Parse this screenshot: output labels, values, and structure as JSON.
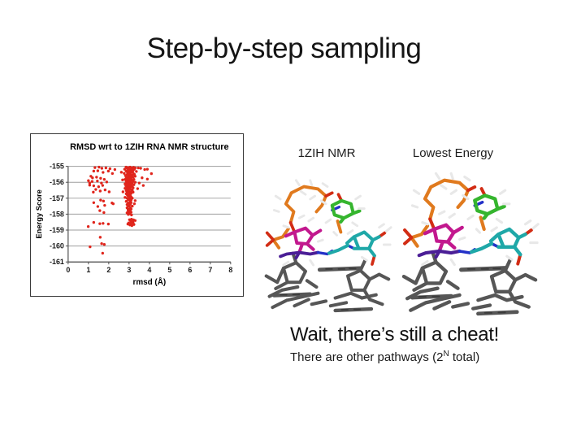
{
  "slide": {
    "title": "Step-by-step sampling",
    "caption_heading": "Wait, there’s still a cheat!",
    "caption_sub_prefix": "There are other pathways (2",
    "caption_sub_sup": "N",
    "caption_sub_suffix": " total)"
  },
  "figures": {
    "left_label": "1ZIH NMR",
    "right_label": "Lowest Energy"
  },
  "colors": {
    "marker_red": "#e0251c",
    "gridline": "#9e9e9e",
    "axis": "#4d4d4d",
    "text": "#1a1a1a"
  },
  "chart_data": {
    "type": "scatter",
    "title": "RMSD wrt to 1ZIH RNA NMR structure",
    "xlabel": "rmsd (Å)",
    "ylabel": "Energy Score",
    "xlim": [
      0,
      8
    ],
    "ylim": [
      -161,
      -155
    ],
    "xticks": [
      0,
      1,
      2,
      3,
      4,
      5,
      6,
      7,
      8
    ],
    "yticks": [
      -155,
      -156,
      -157,
      -158,
      -159,
      -160,
      -161
    ],
    "grid": true,
    "legend": "none",
    "marker_color": "#e0251c",
    "points": [
      [
        2.85,
        -155.05
      ],
      [
        2.95,
        -155.08
      ],
      [
        3.05,
        -155.05
      ],
      [
        3.12,
        -155.1
      ],
      [
        3.22,
        -155.06
      ],
      [
        2.9,
        -155.12
      ],
      [
        3.0,
        -155.15
      ],
      [
        3.16,
        -155.12
      ],
      [
        3.3,
        -155.1
      ],
      [
        3.45,
        -155.1
      ],
      [
        2.78,
        -155.18
      ],
      [
        3.05,
        -155.2
      ],
      [
        3.1,
        -155.22
      ],
      [
        3.26,
        -155.18
      ],
      [
        3.57,
        -155.12
      ],
      [
        2.95,
        -155.25
      ],
      [
        3.02,
        -155.28
      ],
      [
        3.2,
        -155.25
      ],
      [
        3.77,
        -155.2
      ],
      [
        3.9,
        -155.18
      ],
      [
        2.62,
        -155.37
      ],
      [
        2.86,
        -155.3
      ],
      [
        3.06,
        -155.32
      ],
      [
        3.16,
        -155.3
      ],
      [
        3.36,
        -155.32
      ],
      [
        2.92,
        -155.38
      ],
      [
        3.0,
        -155.4
      ],
      [
        3.1,
        -155.36
      ],
      [
        4.1,
        -155.46
      ],
      [
        2.76,
        -155.44
      ],
      [
        2.96,
        -155.45
      ],
      [
        3.2,
        -155.42
      ],
      [
        3.06,
        -155.48
      ],
      [
        2.9,
        -155.52
      ],
      [
        3.0,
        -155.5
      ],
      [
        3.12,
        -155.55
      ],
      [
        3.26,
        -155.5
      ],
      [
        2.82,
        -155.58
      ],
      [
        2.96,
        -155.6
      ],
      [
        3.16,
        -155.58
      ],
      [
        3.64,
        -155.72
      ],
      [
        3.0,
        -155.62
      ],
      [
        3.06,
        -155.65
      ],
      [
        3.3,
        -155.62
      ],
      [
        2.86,
        -155.7
      ],
      [
        2.96,
        -155.72
      ],
      [
        3.1,
        -155.7
      ],
      [
        3.2,
        -155.68
      ],
      [
        3.9,
        -155.8
      ],
      [
        2.9,
        -155.76
      ],
      [
        3.0,
        -155.78
      ],
      [
        3.05,
        -155.75
      ],
      [
        2.8,
        -155.82
      ],
      [
        3.1,
        -155.8
      ],
      [
        3.24,
        -155.82
      ],
      [
        2.68,
        -155.85
      ],
      [
        2.9,
        -155.88
      ],
      [
        3.0,
        -155.9
      ],
      [
        3.16,
        -155.88
      ],
      [
        3.06,
        -155.92
      ],
      [
        2.86,
        -155.95
      ],
      [
        2.96,
        -155.98
      ],
      [
        3.2,
        -155.95
      ],
      [
        2.9,
        -156.02
      ],
      [
        3.04,
        -156.0
      ],
      [
        3.12,
        -156.05
      ],
      [
        3.3,
        -156.0
      ],
      [
        3.5,
        -156.05
      ],
      [
        2.8,
        -156.1
      ],
      [
        2.94,
        -156.08
      ],
      [
        3.0,
        -156.12
      ],
      [
        3.16,
        -156.1
      ],
      [
        2.9,
        -156.15
      ],
      [
        3.06,
        -156.18
      ],
      [
        3.24,
        -156.15
      ],
      [
        3.7,
        -156.2
      ],
      [
        2.84,
        -156.22
      ],
      [
        3.0,
        -156.2
      ],
      [
        3.1,
        -156.25
      ],
      [
        2.9,
        -156.3
      ],
      [
        2.96,
        -156.32
      ],
      [
        3.16,
        -156.28
      ],
      [
        3.04,
        -156.35
      ],
      [
        2.8,
        -156.38
      ],
      [
        3.0,
        -156.4
      ],
      [
        3.2,
        -156.35
      ],
      [
        3.42,
        -156.4
      ],
      [
        2.9,
        -156.45
      ],
      [
        3.06,
        -156.42
      ],
      [
        3.12,
        -156.48
      ],
      [
        2.86,
        -156.52
      ],
      [
        2.96,
        -156.55
      ],
      [
        3.16,
        -156.5
      ],
      [
        3.0,
        -156.58
      ],
      [
        3.1,
        -156.6
      ],
      [
        2.7,
        -156.6
      ],
      [
        2.9,
        -156.65
      ],
      [
        3.04,
        -156.68
      ],
      [
        3.2,
        -156.62
      ],
      [
        2.86,
        -156.72
      ],
      [
        3.0,
        -156.75
      ],
      [
        3.1,
        -156.7
      ],
      [
        2.92,
        -156.82
      ],
      [
        2.96,
        -156.8
      ],
      [
        3.06,
        -156.85
      ],
      [
        3.0,
        -156.9
      ],
      [
        3.1,
        -156.92
      ],
      [
        2.8,
        -156.95
      ],
      [
        2.9,
        -157.0
      ],
      [
        3.04,
        -157.02
      ],
      [
        3.16,
        -157.0
      ],
      [
        2.96,
        -157.1
      ],
      [
        3.0,
        -157.08
      ],
      [
        3.1,
        -157.12
      ],
      [
        2.86,
        -157.2
      ],
      [
        3.06,
        -157.18
      ],
      [
        3.3,
        -157.15
      ],
      [
        2.96,
        -157.3
      ],
      [
        3.1,
        -157.28
      ],
      [
        3.02,
        -157.32
      ],
      [
        2.9,
        -157.4
      ],
      [
        3.06,
        -157.38
      ],
      [
        3.26,
        -157.35
      ],
      [
        3.0,
        -157.48
      ],
      [
        3.16,
        -157.5
      ],
      [
        2.96,
        -157.52
      ],
      [
        2.9,
        -157.6
      ],
      [
        3.06,
        -157.58
      ],
      [
        3.0,
        -157.7
      ],
      [
        3.1,
        -157.68
      ],
      [
        2.95,
        -157.72
      ],
      [
        2.96,
        -157.8
      ],
      [
        3.06,
        -157.82
      ],
      [
        3.0,
        -157.9
      ],
      [
        3.1,
        -157.88
      ],
      [
        2.9,
        -157.92
      ],
      [
        3.04,
        -157.98
      ],
      [
        2.96,
        -158.02
      ],
      [
        3.12,
        -158.05
      ],
      [
        3.02,
        -158.35
      ],
      [
        3.12,
        -158.32
      ],
      [
        3.22,
        -158.36
      ],
      [
        3.3,
        -158.4
      ],
      [
        3.08,
        -158.44
      ],
      [
        3.18,
        -158.46
      ],
      [
        2.98,
        -158.55
      ],
      [
        3.1,
        -158.58
      ],
      [
        3.2,
        -158.55
      ],
      [
        3.04,
        -158.68
      ],
      [
        3.14,
        -158.72
      ],
      [
        2.94,
        -158.62
      ],
      [
        3.24,
        -158.65
      ],
      [
        1.32,
        -155.08
      ],
      [
        1.52,
        -155.05
      ],
      [
        1.66,
        -155.12
      ],
      [
        1.86,
        -155.1
      ],
      [
        2.06,
        -155.15
      ],
      [
        1.26,
        -155.3
      ],
      [
        1.46,
        -155.28
      ],
      [
        1.72,
        -155.38
      ],
      [
        1.98,
        -155.3
      ],
      [
        2.18,
        -155.45
      ],
      [
        1.12,
        -155.62
      ],
      [
        1.2,
        -155.72
      ],
      [
        1.4,
        -155.68
      ],
      [
        1.6,
        -155.75
      ],
      [
        1.78,
        -155.82
      ],
      [
        2.3,
        -155.2
      ],
      [
        1.0,
        -155.9
      ],
      [
        1.18,
        -155.95
      ],
      [
        1.44,
        -155.92
      ],
      [
        1.64,
        -156.05
      ],
      [
        1.9,
        -155.98
      ],
      [
        1.06,
        -156.18
      ],
      [
        1.26,
        -156.22
      ],
      [
        1.5,
        -156.28
      ],
      [
        1.7,
        -156.2
      ],
      [
        1.06,
        -156.05
      ],
      [
        1.36,
        -156.45
      ],
      [
        1.58,
        -156.55
      ],
      [
        1.82,
        -156.48
      ],
      [
        2.02,
        -156.6
      ],
      [
        1.24,
        -156.62
      ],
      [
        1.26,
        -157.28
      ],
      [
        1.6,
        -157.12
      ],
      [
        1.74,
        -157.18
      ],
      [
        1.46,
        -157.52
      ],
      [
        1.8,
        -157.45
      ],
      [
        2.16,
        -157.3
      ],
      [
        2.22,
        -157.35
      ],
      [
        1.56,
        -157.78
      ],
      [
        1.76,
        -157.9
      ],
      [
        0.99,
        -158.78
      ],
      [
        1.26,
        -158.52
      ],
      [
        1.56,
        -158.6
      ],
      [
        1.72,
        -158.58
      ],
      [
        1.98,
        -158.62
      ],
      [
        1.58,
        -159.45
      ],
      [
        1.65,
        -159.85
      ],
      [
        1.78,
        -159.9
      ],
      [
        1.08,
        -160.05
      ],
      [
        1.7,
        -160.45
      ]
    ]
  }
}
